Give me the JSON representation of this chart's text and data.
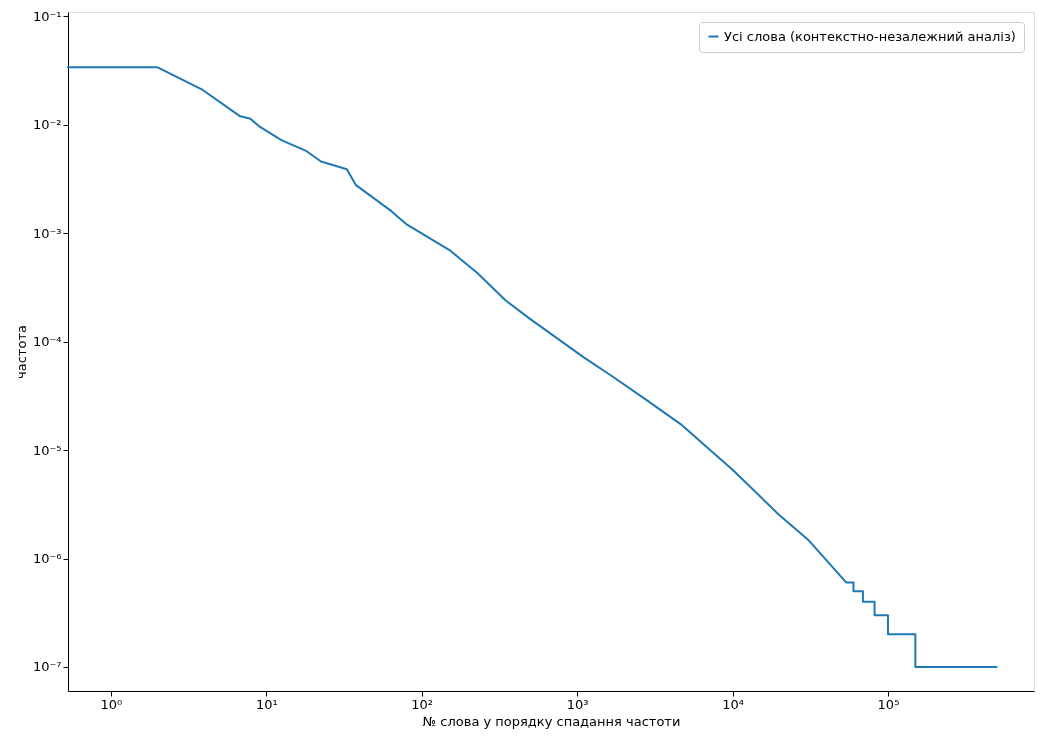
{
  "chart_data": {
    "type": "line",
    "xlabel": "№ слова у порядку спадання частоти",
    "ylabel": "частота",
    "log": "xy",
    "grid": false,
    "legend": "top right",
    "marker": "none",
    "line_style": "solid",
    "xlim": [
      0.53,
      870000
    ],
    "ylim": [
      6e-08,
      0.11
    ],
    "xticks": [
      {
        "value": 1,
        "label": "10⁰"
      },
      {
        "value": 10,
        "label": "10¹"
      },
      {
        "value": 100,
        "label": "10²"
      },
      {
        "value": 1000,
        "label": "10³"
      },
      {
        "value": 10000,
        "label": "10⁴"
      },
      {
        "value": 100000,
        "label": "10⁵"
      }
    ],
    "yticks": [
      {
        "value": 1e-07,
        "label": "10⁻⁷"
      },
      {
        "value": 1e-06,
        "label": "10⁻⁶"
      },
      {
        "value": 1e-05,
        "label": "10⁻⁵"
      },
      {
        "value": 0.0001,
        "label": "10⁻⁴"
      },
      {
        "value": 0.001,
        "label": "10⁻³"
      },
      {
        "value": 0.01,
        "label": "10⁻²"
      },
      {
        "value": 0.1,
        "label": "10⁻¹"
      }
    ],
    "series": [
      {
        "name": "Усі слова (контекстно-незалежний аналіз)",
        "color": "#1f77b4",
        "x": [
          0.53,
          2,
          3.9,
          6.8,
          7.9,
          9.0,
          12.6,
          17.9,
          22.5,
          33,
          37.6,
          63.8,
          80.5,
          151,
          228,
          347,
          490,
          1098,
          1680,
          2700,
          4730,
          10000,
          19800,
          30500,
          54000,
          60000,
          60000,
          69000,
          69000,
          82000,
          82000,
          100000,
          100000,
          150000,
          150000,
          500000
        ],
        "values": [
          0.034,
          0.034,
          0.021,
          0.012,
          0.0114,
          0.0097,
          0.0072,
          0.0058,
          0.0046,
          0.0039,
          0.0028,
          0.0016,
          0.0012,
          0.0007,
          0.00043,
          0.00024,
          0.000165,
          7.2e-05,
          4.8e-05,
          3e-05,
          1.7e-05,
          6.6e-06,
          2.55e-06,
          1.5e-06,
          6e-07,
          6e-07,
          5e-07,
          5e-07,
          4e-07,
          4e-07,
          3e-07,
          3e-07,
          2e-07,
          2e-07,
          1e-07,
          1e-07
        ]
      }
    ]
  }
}
